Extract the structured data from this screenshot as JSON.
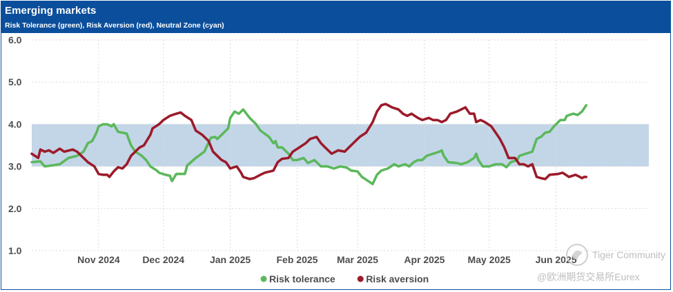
{
  "header": {
    "title": "Emerging markets",
    "subtitle": "Risk Tolerance (green), Risk Aversion (red), Neutral Zone (cyan)"
  },
  "watermark": {
    "line1": "Tiger Community",
    "line2": "@欧洲期货交易所Eurex"
  },
  "colors": {
    "header_bg": "#0b4f9c",
    "tolerance": "#5cb85c",
    "aversion": "#9b1b2a",
    "neutral_zone": "#c3d6e8"
  },
  "chart_data": {
    "type": "line",
    "title": "Emerging markets",
    "subtitle": "Risk Tolerance (green), Risk Aversion (red), Neutral Zone (cyan)",
    "ylim": [
      1.0,
      6.0
    ],
    "yticks": [
      "1.0",
      "2.0",
      "3.0",
      "4.0",
      "5.0",
      "6.0"
    ],
    "x_range_days": [
      0,
      286
    ],
    "xticks": [
      {
        "label": "Nov 2024",
        "day": 31
      },
      {
        "label": "Dec 2024",
        "day": 61
      },
      {
        "label": "Jan 2025",
        "day": 92
      },
      {
        "label": "Feb 2025",
        "day": 123
      },
      {
        "label": "Mar 2025",
        "day": 151
      },
      {
        "label": "Apr 2025",
        "day": 182
      },
      {
        "label": "May 2025",
        "day": 212
      },
      {
        "label": "Jun 2025",
        "day": 243
      }
    ],
    "grid": true,
    "legend": "bottom",
    "neutral_zone": [
      3.0,
      4.0
    ],
    "series": [
      {
        "name": "Risk tolerance",
        "color": "#5cb85c",
        "points": [
          [
            0,
            3.1
          ],
          [
            4,
            3.12
          ],
          [
            6,
            3.0
          ],
          [
            9,
            3.02
          ],
          [
            13,
            3.05
          ],
          [
            17,
            3.2
          ],
          [
            21,
            3.25
          ],
          [
            24,
            3.35
          ],
          [
            26,
            3.55
          ],
          [
            28,
            3.6
          ],
          [
            30,
            3.8
          ],
          [
            31,
            3.95
          ],
          [
            33,
            4.0
          ],
          [
            35,
            4.0
          ],
          [
            37,
            3.95
          ],
          [
            38,
            4.0
          ],
          [
            40,
            3.82
          ],
          [
            44,
            3.78
          ],
          [
            46,
            3.5
          ],
          [
            48,
            3.35
          ],
          [
            51,
            3.25
          ],
          [
            53,
            3.15
          ],
          [
            55,
            3.0
          ],
          [
            58,
            2.9
          ],
          [
            59,
            2.85
          ],
          [
            62,
            2.8
          ],
          [
            64,
            2.78
          ],
          [
            65,
            2.65
          ],
          [
            67,
            2.82
          ],
          [
            71,
            2.82
          ],
          [
            72,
            3.02
          ],
          [
            76,
            3.2
          ],
          [
            80,
            3.35
          ],
          [
            83,
            3.68
          ],
          [
            85,
            3.7
          ],
          [
            86,
            3.65
          ],
          [
            88,
            3.75
          ],
          [
            90,
            3.85
          ],
          [
            91,
            3.9
          ],
          [
            92,
            4.15
          ],
          [
            94,
            4.3
          ],
          [
            96,
            4.25
          ],
          [
            98,
            4.35
          ],
          [
            101,
            4.15
          ],
          [
            104,
            4.0
          ],
          [
            106,
            3.85
          ],
          [
            110,
            3.7
          ],
          [
            112,
            3.55
          ],
          [
            113,
            3.6
          ],
          [
            114,
            3.45
          ],
          [
            116,
            3.45
          ],
          [
            119,
            3.3
          ],
          [
            121,
            3.15
          ],
          [
            123,
            3.15
          ],
          [
            126,
            3.2
          ],
          [
            128,
            3.08
          ],
          [
            131,
            3.15
          ],
          [
            134,
            3.0
          ],
          [
            137,
            3.0
          ],
          [
            140,
            2.95
          ],
          [
            143,
            3.0
          ],
          [
            146,
            2.97
          ],
          [
            148,
            2.9
          ],
          [
            151,
            2.88
          ],
          [
            153,
            2.75
          ],
          [
            156,
            2.65
          ],
          [
            158,
            2.58
          ],
          [
            160,
            2.8
          ],
          [
            162,
            2.9
          ],
          [
            165,
            2.95
          ],
          [
            168,
            3.05
          ],
          [
            170,
            3.0
          ],
          [
            173,
            3.05
          ],
          [
            175,
            3.0
          ],
          [
            177,
            3.1
          ],
          [
            179,
            3.15
          ],
          [
            181,
            3.15
          ],
          [
            183,
            3.25
          ],
          [
            186,
            3.3
          ],
          [
            189,
            3.35
          ],
          [
            190,
            3.38
          ],
          [
            191,
            3.25
          ],
          [
            193,
            3.1
          ],
          [
            197,
            3.08
          ],
          [
            199,
            3.05
          ],
          [
            202,
            3.1
          ],
          [
            205,
            3.2
          ],
          [
            206,
            3.3
          ],
          [
            207,
            3.15
          ],
          [
            209,
            3.0
          ],
          [
            212,
            3.0
          ],
          [
            215,
            3.05
          ],
          [
            218,
            3.05
          ],
          [
            220,
            2.98
          ],
          [
            222,
            3.1
          ],
          [
            225,
            3.15
          ],
          [
            226,
            3.25
          ],
          [
            229,
            3.3
          ],
          [
            232,
            3.35
          ],
          [
            234,
            3.65
          ],
          [
            236,
            3.7
          ],
          [
            238,
            3.8
          ],
          [
            240,
            3.82
          ],
          [
            242,
            3.95
          ],
          [
            245,
            4.1
          ],
          [
            247,
            4.1
          ],
          [
            248,
            4.2
          ],
          [
            251,
            4.25
          ],
          [
            253,
            4.22
          ],
          [
            255,
            4.3
          ],
          [
            257,
            4.45
          ]
        ]
      },
      {
        "name": "Risk aversion",
        "color": "#9b1b2a",
        "points": [
          [
            0,
            3.3
          ],
          [
            3,
            3.2
          ],
          [
            4,
            3.4
          ],
          [
            6,
            3.35
          ],
          [
            8,
            3.38
          ],
          [
            10,
            3.32
          ],
          [
            13,
            3.42
          ],
          [
            15,
            3.35
          ],
          [
            19,
            3.4
          ],
          [
            21,
            3.35
          ],
          [
            23,
            3.25
          ],
          [
            26,
            3.1
          ],
          [
            29,
            3.0
          ],
          [
            31,
            2.82
          ],
          [
            33,
            2.8
          ],
          [
            35,
            2.8
          ],
          [
            36,
            2.75
          ],
          [
            38,
            2.88
          ],
          [
            40,
            2.98
          ],
          [
            42,
            2.95
          ],
          [
            44,
            3.05
          ],
          [
            46,
            3.25
          ],
          [
            48,
            3.35
          ],
          [
            50,
            3.45
          ],
          [
            52,
            3.5
          ],
          [
            55,
            3.75
          ],
          [
            56,
            3.9
          ],
          [
            59,
            4.0
          ],
          [
            61,
            4.1
          ],
          [
            64,
            4.2
          ],
          [
            67,
            4.25
          ],
          [
            69,
            4.28
          ],
          [
            71,
            4.2
          ],
          [
            74,
            4.1
          ],
          [
            76,
            3.85
          ],
          [
            79,
            3.75
          ],
          [
            82,
            3.6
          ],
          [
            84,
            3.35
          ],
          [
            86,
            3.25
          ],
          [
            88,
            3.15
          ],
          [
            90,
            3.1
          ],
          [
            92,
            2.95
          ],
          [
            95,
            3.0
          ],
          [
            97,
            2.85
          ],
          [
            98,
            2.75
          ],
          [
            101,
            2.7
          ],
          [
            103,
            2.72
          ],
          [
            106,
            2.8
          ],
          [
            108,
            2.85
          ],
          [
            112,
            2.9
          ],
          [
            114,
            3.1
          ],
          [
            116,
            3.18
          ],
          [
            119,
            3.2
          ],
          [
            121,
            3.35
          ],
          [
            124,
            3.45
          ],
          [
            127,
            3.55
          ],
          [
            129,
            3.65
          ],
          [
            132,
            3.7
          ],
          [
            134,
            3.55
          ],
          [
            136,
            3.45
          ],
          [
            139,
            3.3
          ],
          [
            142,
            3.38
          ],
          [
            145,
            3.35
          ],
          [
            148,
            3.5
          ],
          [
            152,
            3.7
          ],
          [
            155,
            3.8
          ],
          [
            158,
            4.05
          ],
          [
            160,
            4.3
          ],
          [
            162,
            4.45
          ],
          [
            164,
            4.48
          ],
          [
            167,
            4.4
          ],
          [
            170,
            4.35
          ],
          [
            172,
            4.25
          ],
          [
            174,
            4.2
          ],
          [
            176,
            4.25
          ],
          [
            179,
            4.15
          ],
          [
            181,
            4.1
          ],
          [
            184,
            4.15
          ],
          [
            186,
            4.1
          ],
          [
            188,
            4.1
          ],
          [
            190,
            4.05
          ],
          [
            192,
            4.1
          ],
          [
            194,
            4.25
          ],
          [
            197,
            4.3
          ],
          [
            199,
            4.35
          ],
          [
            201,
            4.4
          ],
          [
            203,
            4.25
          ],
          [
            205,
            4.25
          ],
          [
            206,
            4.05
          ],
          [
            208,
            4.1
          ],
          [
            210,
            4.05
          ],
          [
            213,
            3.95
          ],
          [
            215,
            3.8
          ],
          [
            217,
            3.65
          ],
          [
            219,
            3.45
          ],
          [
            221,
            3.2
          ],
          [
            224,
            3.2
          ],
          [
            226,
            3.05
          ],
          [
            228,
            3.05
          ],
          [
            230,
            3.0
          ],
          [
            232,
            3.05
          ],
          [
            234,
            2.75
          ],
          [
            236,
            2.72
          ],
          [
            238,
            2.7
          ],
          [
            240,
            2.8
          ],
          [
            244,
            2.82
          ],
          [
            246,
            2.85
          ],
          [
            249,
            2.75
          ],
          [
            252,
            2.8
          ],
          [
            254,
            2.75
          ],
          [
            255,
            2.72
          ],
          [
            256,
            2.75
          ],
          [
            257,
            2.75
          ]
        ]
      }
    ]
  }
}
